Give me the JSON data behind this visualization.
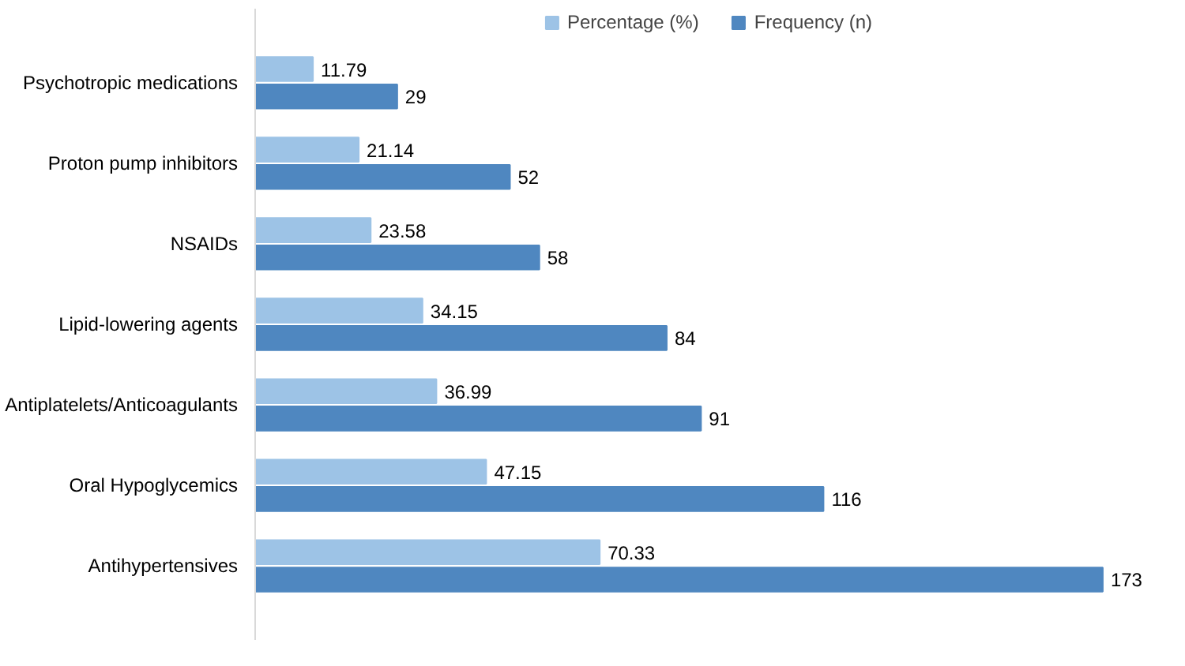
{
  "chart_data": {
    "type": "bar",
    "orientation": "horizontal",
    "categories": [
      "Psychotropic medications",
      "Proton pump inhibitors",
      "NSAIDs",
      "Lipid-lowering agents",
      "Antiplatelets/Anticoagulants",
      "Oral Hypoglycemics",
      "Antihypertensives"
    ],
    "series": [
      {
        "name": "Percentage (%)",
        "color": "#9dc3e6",
        "values": [
          11.79,
          21.14,
          23.58,
          34.15,
          36.99,
          47.15,
          70.33
        ]
      },
      {
        "name": "Frequency (n)",
        "color": "#4f87c0",
        "values": [
          29,
          52,
          58,
          84,
          91,
          116,
          173
        ]
      }
    ],
    "data_labels": true,
    "legend": "top",
    "tick_labels": "y",
    "grid": false
  }
}
